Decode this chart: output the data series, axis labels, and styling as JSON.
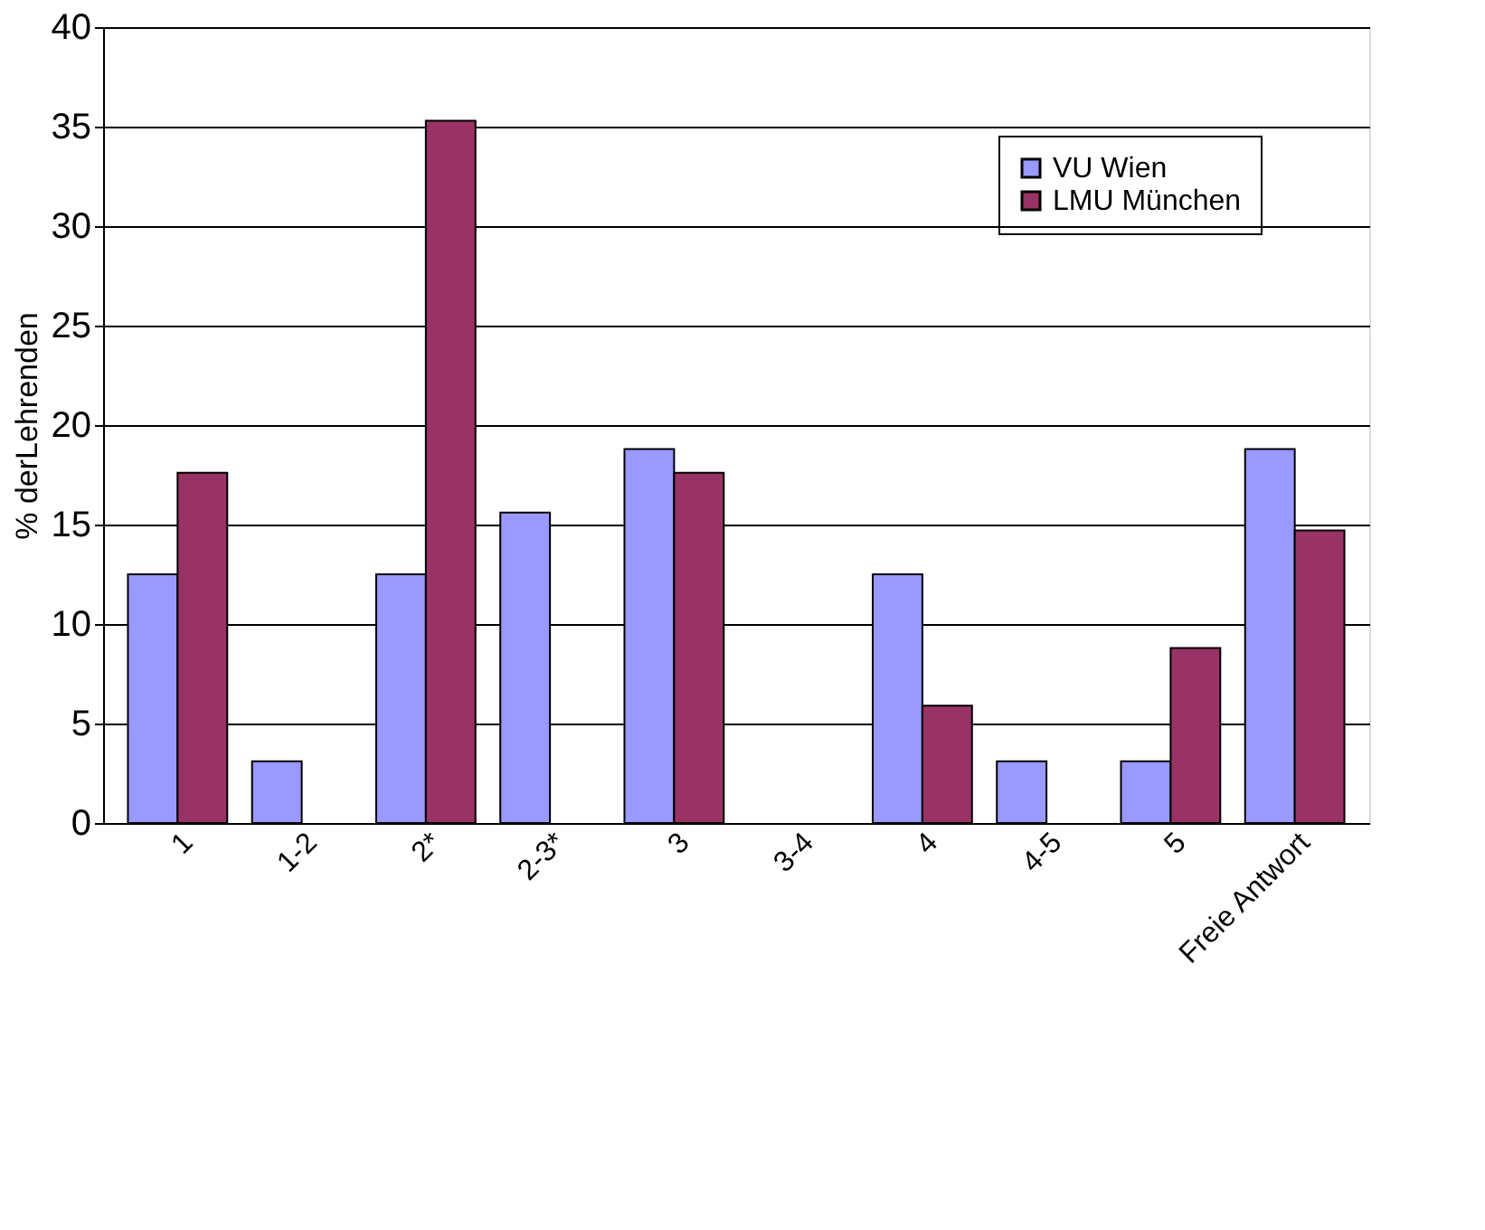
{
  "chart_data": {
    "type": "bar",
    "ylabel": "% derLehrenden",
    "categories": [
      "1",
      "1-2",
      "2*",
      "2-3*",
      "3",
      "3-4",
      "4",
      "4-5",
      "5",
      "Freie Antwort"
    ],
    "series": [
      {
        "name": "VU Wien",
        "color": "#9999ff",
        "values": [
          12.5,
          3.1,
          12.5,
          15.6,
          18.8,
          0,
          12.5,
          3.1,
          3.1,
          18.8
        ]
      },
      {
        "name": "LMU München",
        "color": "#993366",
        "values": [
          17.6,
          0,
          35.3,
          0,
          17.6,
          0,
          5.9,
          0,
          8.8,
          14.7
        ]
      }
    ],
    "ylim": [
      0,
      40
    ],
    "yticks": [
      0,
      5,
      10,
      15,
      20,
      25,
      30,
      35,
      40
    ],
    "grid": "y",
    "legend": "top right"
  }
}
